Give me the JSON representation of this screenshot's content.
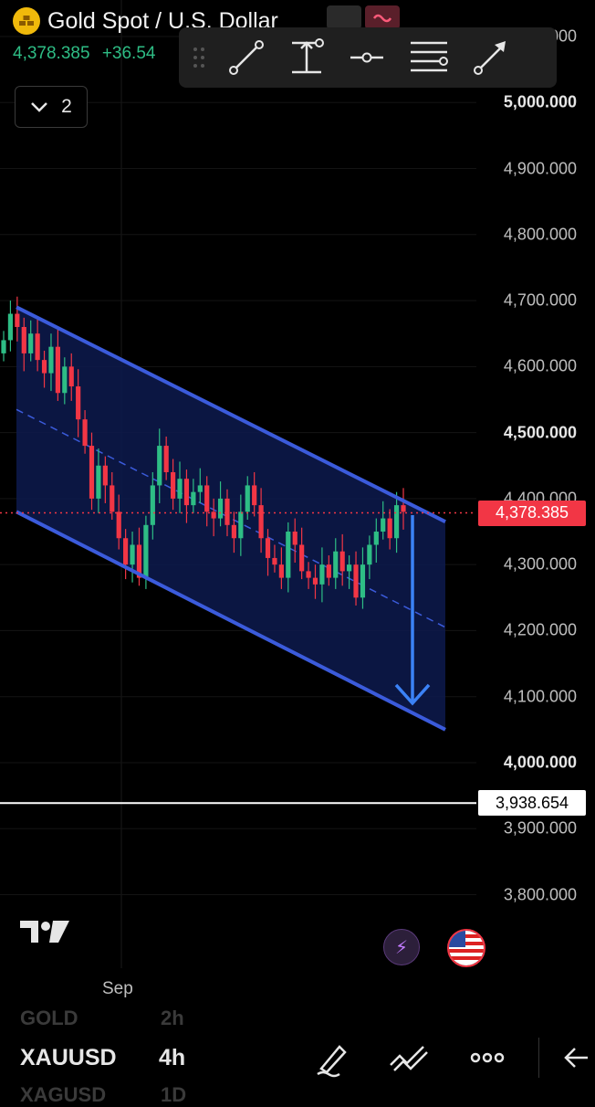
{
  "header": {
    "instrument_title": "Gold Spot / U.S. Dollar",
    "last_price": "4,378.385",
    "change": "+36.54",
    "layer_count": "2"
  },
  "price_axis": {
    "top_label": "5,100.000",
    "labels": [
      "5,000.000",
      "4,900.000",
      "4,800.000",
      "4,700.000",
      "4,600.000",
      "4,500.000",
      "4,400.000",
      "4,300.000",
      "4,200.000",
      "4,100.000",
      "4,000.000",
      "3,900.000",
      "3,800.000"
    ],
    "bold_labels": [
      "5,000.000",
      "4,500.000",
      "4,000.000"
    ]
  },
  "price_tags": {
    "current": "4,378.385",
    "reference": "3,938.654"
  },
  "time_axis": {
    "label": "Sep"
  },
  "footer": {
    "ghost_above_symbol": "GOLD",
    "ghost_above_tf": "2h",
    "symbol": "XAUUSD",
    "timeframe": "4h",
    "ghost_below_symbol": "XAGUSD",
    "ghost_below_tf": "1D"
  },
  "icons": {
    "toolbar": [
      "drag-handle-icon",
      "trend-line-icon",
      "range-icon",
      "horizontal-ray-icon",
      "fib-lines-icon",
      "arrow-line-icon"
    ],
    "footer": [
      "pen-icon",
      "draw-tools-icon",
      "more-icon",
      "back-icon"
    ]
  },
  "colors": {
    "up": "#2ebd85",
    "down": "#f23645",
    "channel": "#3b5bdb",
    "channel_fill": "#0d1a4d",
    "arrow": "#3b82f6"
  },
  "chart_data": {
    "type": "candlestick",
    "symbol": "XAUUSD",
    "interval": "4h",
    "y_range": [
      3750,
      5110
    ],
    "current_price": 4378.385,
    "reference_level": 3938.654,
    "channel": {
      "upper_start": 4690,
      "upper_end": 4365,
      "lower_start": 4380,
      "lower_end": 4050,
      "mid_start": 4535,
      "mid_end": 4205
    },
    "projection_target": 4090,
    "closes": [
      4640,
      4680,
      4660,
      4620,
      4650,
      4610,
      4590,
      4630,
      4560,
      4600,
      4570,
      4520,
      4480,
      4400,
      4450,
      4420,
      4380,
      4340,
      4300,
      4330,
      4280,
      4360,
      4420,
      4480,
      4440,
      4400,
      4430,
      4390,
      4410,
      4420,
      4380,
      4370,
      4400,
      4360,
      4340,
      4380,
      4420,
      4390,
      4340,
      4310,
      4300,
      4280,
      4350,
      4330,
      4290,
      4280,
      4270,
      4300,
      4280,
      4320,
      4290,
      4300,
      4250,
      4300,
      4330,
      4350,
      4370,
      4340,
      4390,
      4380
    ],
    "opens": [
      4620,
      4640,
      4680,
      4660,
      4620,
      4650,
      4610,
      4590,
      4630,
      4560,
      4600,
      4570,
      4520,
      4480,
      4400,
      4450,
      4420,
      4380,
      4340,
      4300,
      4330,
      4280,
      4360,
      4420,
      4480,
      4440,
      4400,
      4430,
      4390,
      4410,
      4420,
      4380,
      4370,
      4400,
      4360,
      4340,
      4380,
      4420,
      4390,
      4340,
      4310,
      4300,
      4280,
      4350,
      4330,
      4290,
      4280,
      4270,
      4300,
      4280,
      4320,
      4290,
      4300,
      4250,
      4300,
      4330,
      4350,
      4370,
      4340,
      4390
    ]
  }
}
